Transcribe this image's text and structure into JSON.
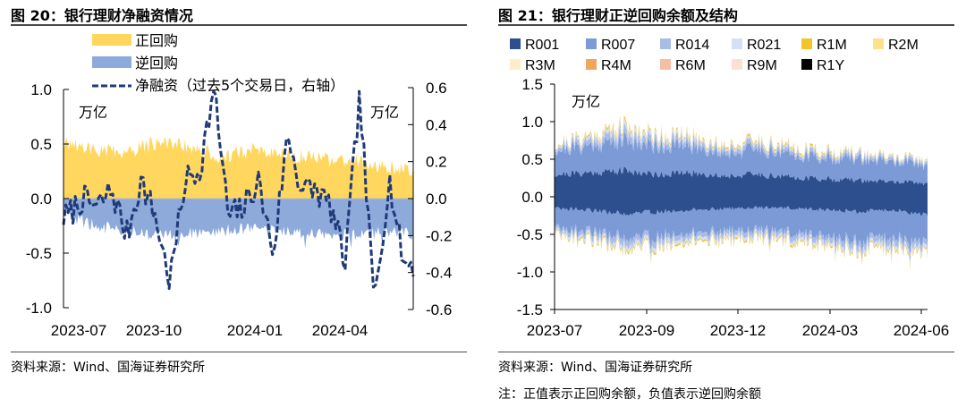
{
  "figures": [
    {
      "title": "图 20：银行理财净融资情况",
      "source": "资料来源：Wind、国海证券研究所",
      "note": ""
    },
    {
      "title": "图 21：银行理财正逆回购余额及结构",
      "source": "资料来源：Wind、国海证券研究所",
      "note": "注：正值表示正回购余额，负值表示逆回购余额"
    }
  ],
  "chart_data": [
    {
      "type": "area",
      "title": "银行理财净融资情况",
      "unit_left": "万亿",
      "unit_right": "万亿",
      "x_tick_labels": [
        "2023-07",
        "2023-10",
        "2024-01",
        "2024-04"
      ],
      "x_range": [
        "2023-07-01",
        "2024-06-30"
      ],
      "ylim_left": [
        -1.0,
        1.0
      ],
      "yticks_left": [
        "1.0",
        "0.5",
        "0.0",
        "-0.5",
        "-1.0"
      ],
      "ylim_right": [
        -0.6,
        0.6
      ],
      "yticks_right": [
        "0.6",
        "0.4",
        "0.2",
        "0.0",
        "-0.2",
        "-0.4",
        "-0.6"
      ],
      "legend": [
        "正回购",
        "逆回购",
        "净融资（过去5个交易日，右轴）"
      ],
      "colors": {
        "repo": "#ffd75e",
        "reverse_repo": "#8eaadb",
        "net": "#1f3a78"
      },
      "series": [
        {
          "name": "正回购",
          "axis": "left",
          "x": [
            "2023-07",
            "2023-08",
            "2023-09",
            "2023-10",
            "2023-11",
            "2023-12",
            "2024-01",
            "2024-02",
            "2024-03",
            "2024-04",
            "2024-05",
            "2024-06"
          ],
          "values": [
            0.5,
            0.45,
            0.42,
            0.52,
            0.48,
            0.38,
            0.45,
            0.4,
            0.36,
            0.35,
            0.3,
            0.25
          ]
        },
        {
          "name": "逆回购",
          "axis": "left",
          "x": [
            "2023-07",
            "2023-08",
            "2023-09",
            "2023-10",
            "2023-11",
            "2023-12",
            "2024-01",
            "2024-02",
            "2024-03",
            "2024-04",
            "2024-05",
            "2024-06"
          ],
          "values": [
            -0.15,
            -0.25,
            -0.3,
            -0.35,
            -0.32,
            -0.3,
            -0.28,
            -0.3,
            -0.32,
            -0.33,
            -0.3,
            -0.33
          ]
        },
        {
          "name": "净融资（过去5个交易日，右轴）",
          "axis": "right",
          "x": [
            "2023-07-05",
            "2023-07-20",
            "2023-08-05",
            "2023-08-20",
            "2023-09-05",
            "2023-09-20",
            "2023-10-05",
            "2023-10-20",
            "2023-11-05",
            "2023-11-20",
            "2023-12-05",
            "2023-12-20",
            "2024-01-05",
            "2024-01-20",
            "2024-02-05",
            "2024-02-20",
            "2024-03-05",
            "2024-03-20",
            "2024-04-05",
            "2024-04-20",
            "2024-05-05",
            "2024-05-20",
            "2024-06-05",
            "2024-06-20"
          ],
          "values": [
            -0.1,
            0.0,
            -0.05,
            0.05,
            -0.2,
            0.1,
            -0.1,
            -0.45,
            0.1,
            0.15,
            0.6,
            -0.1,
            -0.05,
            0.1,
            -0.3,
            0.35,
            0.05,
            0.05,
            -0.05,
            -0.35,
            0.55,
            -0.55,
            0.1,
            -0.35
          ]
        }
      ]
    },
    {
      "type": "area",
      "title": "银行理财正逆回购余额及结构",
      "unit": "万亿",
      "x_tick_labels": [
        "2023-07",
        "2023-09",
        "2023-12",
        "2024-03",
        "2024-06"
      ],
      "x_range": [
        "2023-07-01",
        "2024-06-30"
      ],
      "ylim": [
        -1.5,
        1.5
      ],
      "yticks": [
        "1.5",
        "1.0",
        "0.5",
        "0.0",
        "-0.5",
        "-1.0",
        "-1.5"
      ],
      "legend": [
        "R001",
        "R007",
        "R014",
        "R021",
        "R1M",
        "R2M",
        "R3M",
        "R4M",
        "R6M",
        "R9M",
        "R1Y"
      ],
      "legend_colors": [
        "#2d4f8e",
        "#7c9bd6",
        "#a8bce6",
        "#d6e0f4",
        "#f3c42c",
        "#ffe08c",
        "#fcefc9",
        "#f2a55c",
        "#f6bfa3",
        "#fae1d4",
        "#000000"
      ],
      "positive": {
        "x": [
          "2023-07",
          "2023-08",
          "2023-09",
          "2023-10",
          "2023-11",
          "2023-12",
          "2024-01",
          "2024-02",
          "2024-03",
          "2024-04",
          "2024-05",
          "2024-06"
        ],
        "series": [
          {
            "name": "R001",
            "values": [
              0.3,
              0.32,
              0.35,
              0.3,
              0.32,
              0.28,
              0.3,
              0.26,
              0.24,
              0.22,
              0.2,
              0.18
            ]
          },
          {
            "name": "R007",
            "values": [
              0.32,
              0.36,
              0.4,
              0.38,
              0.36,
              0.3,
              0.34,
              0.3,
              0.28,
              0.28,
              0.26,
              0.24
            ]
          },
          {
            "name": "R014",
            "values": [
              0.05,
              0.07,
              0.1,
              0.08,
              0.07,
              0.06,
              0.06,
              0.05,
              0.05,
              0.05,
              0.04,
              0.04
            ]
          },
          {
            "name": "R021",
            "values": [
              0.02,
              0.04,
              0.06,
              0.05,
              0.04,
              0.03,
              0.03,
              0.03,
              0.02,
              0.02,
              0.02,
              0.02
            ]
          },
          {
            "name": "R1M",
            "values": [
              0.01,
              0.02,
              0.03,
              0.02,
              0.02,
              0.02,
              0.02,
              0.02,
              0.02,
              0.01,
              0.01,
              0.01
            ]
          }
        ]
      },
      "negative": {
        "x": [
          "2023-07",
          "2023-08",
          "2023-09",
          "2023-10",
          "2023-11",
          "2023-12",
          "2024-01",
          "2024-02",
          "2024-03",
          "2024-04",
          "2024-05",
          "2024-06"
        ],
        "series": [
          {
            "name": "R001",
            "values": [
              -0.15,
              -0.18,
              -0.22,
              -0.2,
              -0.18,
              -0.16,
              -0.15,
              -0.15,
              -0.18,
              -0.2,
              -0.18,
              -0.25
            ]
          },
          {
            "name": "R007",
            "values": [
              -0.25,
              -0.28,
              -0.3,
              -0.32,
              -0.3,
              -0.3,
              -0.3,
              -0.32,
              -0.35,
              -0.38,
              -0.35,
              -0.38
            ]
          },
          {
            "name": "R014",
            "values": [
              -0.05,
              -0.06,
              -0.08,
              -0.07,
              -0.06,
              -0.06,
              -0.06,
              -0.06,
              -0.07,
              -0.08,
              -0.08,
              -0.08
            ]
          },
          {
            "name": "R021",
            "values": [
              -0.03,
              -0.04,
              -0.05,
              -0.05,
              -0.04,
              -0.04,
              -0.04,
              -0.04,
              -0.04,
              -0.05,
              -0.05,
              -0.05
            ]
          },
          {
            "name": "R1M",
            "values": [
              -0.01,
              -0.02,
              -0.02,
              -0.02,
              -0.02,
              -0.02,
              -0.02,
              -0.02,
              -0.02,
              -0.02,
              -0.02,
              -0.02
            ]
          }
        ]
      }
    }
  ]
}
